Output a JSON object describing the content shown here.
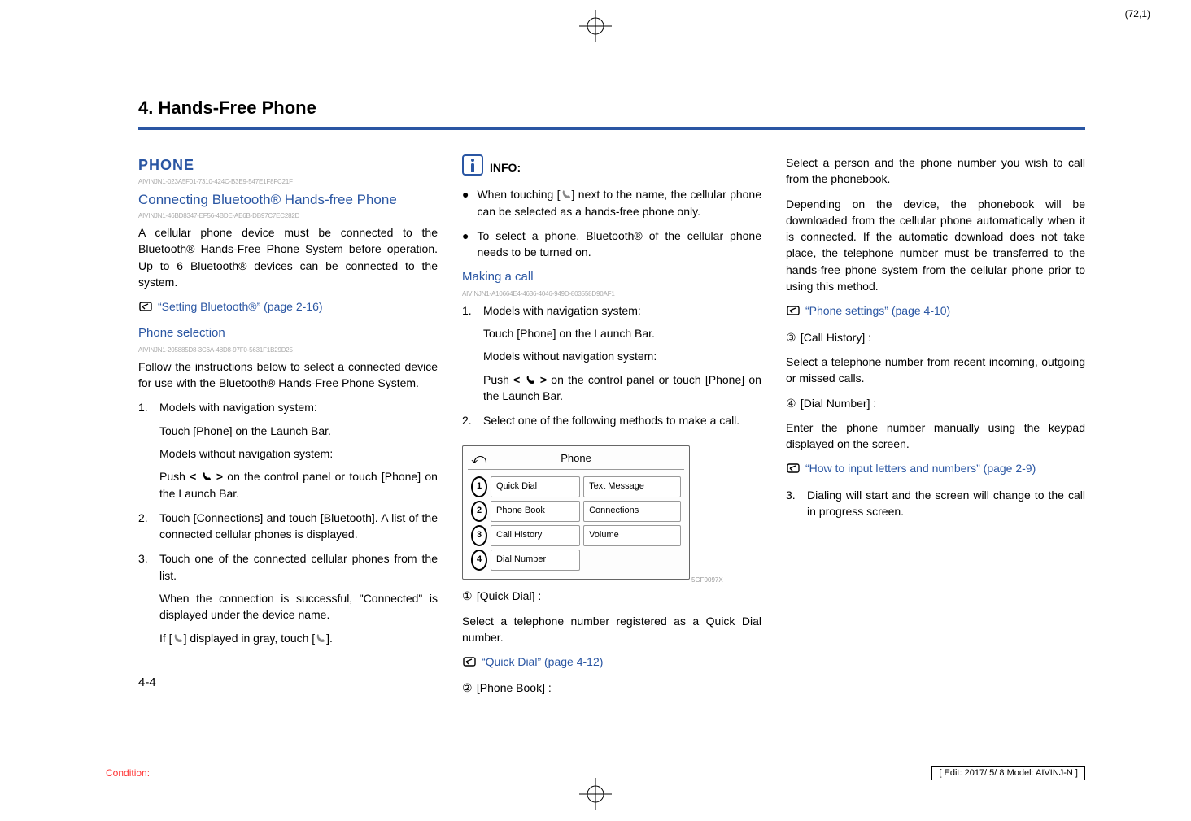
{
  "meta": {
    "page_marker": "(72,1)",
    "chapter_title": "4. Hands-Free Phone",
    "rule_color": "#2a56a3",
    "link_color": "#2a56a3",
    "page_number": "4-4",
    "condition_label": "Condition:",
    "edit_box": "[ Edit: 2017/ 5/ 8    Model:  AIVINJ-N ]"
  },
  "col1": {
    "h1": "PHONE",
    "h1_id": "AIVINJN1-023A5F01-7310-424C-B3E9-547E1F8FC21F",
    "h2": "Connecting Bluetooth® Hands-free Phone",
    "h2_id": "AIVINJN1-46BD8347-EF56-4BDE-AE6B-DB97C7EC282D",
    "p1": "A cellular phone device must be connected to the Bluetooth® Hands-Free Phone System before operation. Up to 6 Bluetooth® devices can be connected to the system.",
    "ref1": "“Setting Bluetooth®” (page 2-16)",
    "h3": "Phone selection",
    "h3_id": "AIVINJN1-205885D8-3C6A-48D8-97F0-5631F1B29D25",
    "p2": "Follow the instructions below to select a connected device for use with the Bluetooth® Hands-Free Phone System.",
    "l1_a": "Models with navigation system:",
    "l1_b": "Touch [Phone] on the Launch Bar.",
    "l1_c": "Models without navigation system:",
    "l1_d_pre": "Push ",
    "l1_d_mid": " on the control panel or touch [Phone] on the Launch Bar.",
    "l2": "Touch [Connections] and touch [Bluetooth]. A list of the connected cellular phones is displayed.",
    "l3_a": "Touch one of the connected cellular phones from the list.",
    "l3_b": "When the connection is successful, \"Connected\" is displayed under the device name.",
    "l3_c_pre": "If [",
    "l3_c_mid": "] displayed in gray, touch [",
    "l3_c_post": "]."
  },
  "col2": {
    "info_label": "INFO:",
    "b1_pre": "When touching [",
    "b1_post": "] next to the name, the cellular phone can be selected as a hands-free phone only.",
    "b2": "To select a phone, Bluetooth® of the cellular phone needs to be turned on.",
    "h3": "Making a call",
    "h3_id": "AIVINJN1-A10664E4-4636-4046-949D-803558D90AF1",
    "l1_a": "Models with navigation system:",
    "l1_b": "Touch [Phone] on the Launch Bar.",
    "l1_c": "Models without navigation system:",
    "l1_d_pre": "Push ",
    "l1_d_mid": " on the control panel or touch [Phone] on the Launch Bar.",
    "l2": "Select one of the following methods to make a call.",
    "figure": {
      "title": "Phone",
      "rows": [
        {
          "n": "1",
          "a": "Quick Dial",
          "b": "Text Message"
        },
        {
          "n": "2",
          "a": "Phone Book",
          "b": "Connections"
        },
        {
          "n": "3",
          "a": "Call History",
          "b": "Volume"
        },
        {
          "n": "4",
          "a": "Dial Number",
          "b": ""
        }
      ],
      "fig_id": "5GF0097X"
    },
    "c1_h": "[Quick Dial] :",
    "c1_p": "Select a telephone number registered as a Quick Dial number.",
    "c1_ref": "“Quick Dial” (page 4-12)",
    "c2_h": "[Phone Book] :"
  },
  "col3": {
    "p1": "Select a person and the phone number you wish to call from the phonebook.",
    "p2": "Depending on the device, the phonebook will be downloaded from the cellular phone automatically when it is connected. If the automatic download does not take place, the telephone number must be transferred to the hands-free phone system from the cellular phone prior to using this method.",
    "ref2": "“Phone settings” (page 4-10)",
    "c3_h": "[Call History] :",
    "c3_p": "Select a telephone number from recent incoming, outgoing or missed calls.",
    "c4_h": "[Dial Number] :",
    "c4_p": "Enter the phone number manually using the keypad displayed on the screen.",
    "ref3": "“How to input letters and numbers” (page 2-9)",
    "l3": "Dialing will start and the screen will change to the call in progress screen."
  }
}
